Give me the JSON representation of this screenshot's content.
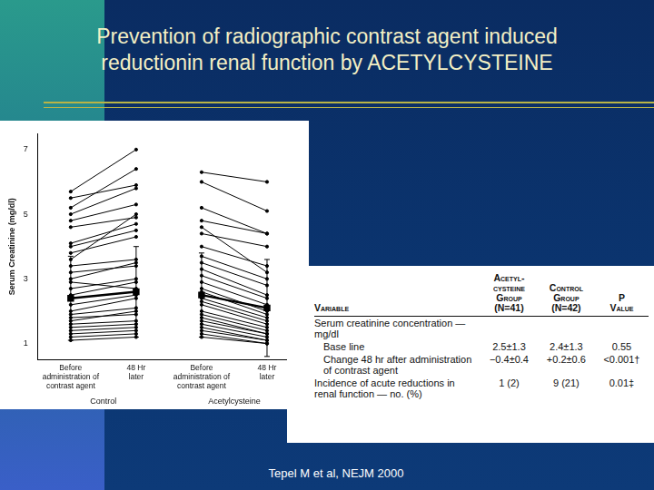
{
  "title_lines": [
    "Prevention of radiographic contrast agent induced",
    "reductionin renal function by ACETYLCYSTEINE"
  ],
  "chart_data": {
    "type": "line",
    "y_label": "Serum Creatinine (mg/dl)",
    "categories": [
      [
        "Before",
        "administration of",
        "contrast agent"
      ],
      [
        "48 Hr",
        "later"
      ],
      [
        "Before",
        "administration of",
        "contrast agent"
      ],
      [
        "48 Hr",
        "later"
      ]
    ],
    "ylim": [
      0.5,
      7.5
    ],
    "yticks": [
      1,
      3,
      5,
      7
    ],
    "grid": false,
    "color": "#000000",
    "groups": [
      {
        "name": "Control",
        "mean": [
          2.4,
          2.6
        ],
        "sd": [
          1.3,
          1.4
        ],
        "pairs": [
          [
            5.7,
            7.0
          ],
          [
            5.5,
            5.9
          ],
          [
            5.2,
            6.4
          ],
          [
            5.0,
            5.8
          ],
          [
            4.8,
            5.3
          ],
          [
            4.6,
            4.9
          ],
          [
            4.1,
            4.7
          ],
          [
            4.0,
            4.5
          ],
          [
            3.8,
            4.3
          ],
          [
            3.6,
            5.0
          ],
          [
            3.4,
            3.6
          ],
          [
            3.2,
            3.4
          ],
          [
            3.0,
            3.5
          ],
          [
            2.9,
            2.7
          ],
          [
            2.7,
            3.0
          ],
          [
            2.5,
            2.9
          ],
          [
            2.4,
            2.6
          ],
          [
            2.2,
            2.5
          ],
          [
            2.0,
            2.4
          ],
          [
            1.9,
            2.1
          ],
          [
            1.8,
            1.9
          ],
          [
            1.7,
            2.0
          ],
          [
            1.6,
            1.7
          ],
          [
            1.5,
            1.6
          ],
          [
            1.4,
            1.5
          ],
          [
            1.3,
            1.4
          ],
          [
            1.2,
            1.3
          ],
          [
            1.1,
            1.2
          ]
        ]
      },
      {
        "name": "Acetylcysteine",
        "mean": [
          2.5,
          2.1
        ],
        "sd": [
          1.3,
          1.5
        ],
        "pairs": [
          [
            6.3,
            6.0
          ],
          [
            6.0,
            5.1
          ],
          [
            5.2,
            4.4
          ],
          [
            4.8,
            4.4
          ],
          [
            4.6,
            3.2
          ],
          [
            4.4,
            4.0
          ],
          [
            4.0,
            3.4
          ],
          [
            3.7,
            3.0
          ],
          [
            3.5,
            2.8
          ],
          [
            3.3,
            2.5
          ],
          [
            3.1,
            2.4
          ],
          [
            2.9,
            2.2
          ],
          [
            2.7,
            2.0
          ],
          [
            2.6,
            1.9
          ],
          [
            2.5,
            2.1
          ],
          [
            2.4,
            1.8
          ],
          [
            2.3,
            1.7
          ],
          [
            2.2,
            1.6
          ],
          [
            2.0,
            1.5
          ],
          [
            1.9,
            1.4
          ],
          [
            1.8,
            1.3
          ],
          [
            1.7,
            1.3
          ],
          [
            1.6,
            1.2
          ],
          [
            1.5,
            1.1
          ],
          [
            1.4,
            1.1
          ],
          [
            1.3,
            1.0
          ],
          [
            1.2,
            1.0
          ]
        ]
      }
    ]
  },
  "table": {
    "header": [
      [
        "Variable"
      ],
      [
        "Acetyl-",
        "cysteine",
        "Group",
        "(N=41)"
      ],
      [
        "Control",
        "Group",
        "(N=42)"
      ],
      [
        "P",
        "Value"
      ]
    ],
    "rows": [
      {
        "cells": [
          "Serum creatinine concentration — mg/dl"
        ],
        "section": true
      },
      {
        "cells": [
          "Base line",
          "2.5±1.3",
          "2.4±1.3",
          "0.55"
        ],
        "section": false
      },
      {
        "cells": [
          "Change 48 hr after administration of contrast agent",
          "−0.4±0.4",
          "+0.2±0.6",
          "<0.001†"
        ],
        "section": false
      },
      {
        "cells": [
          "Incidence of acute reductions in renal function — no. (%)",
          "1 (2)",
          "9 (21)",
          "0.01‡"
        ],
        "section": true
      }
    ]
  },
  "citation": "Tepel M et al, NEJM 2000"
}
